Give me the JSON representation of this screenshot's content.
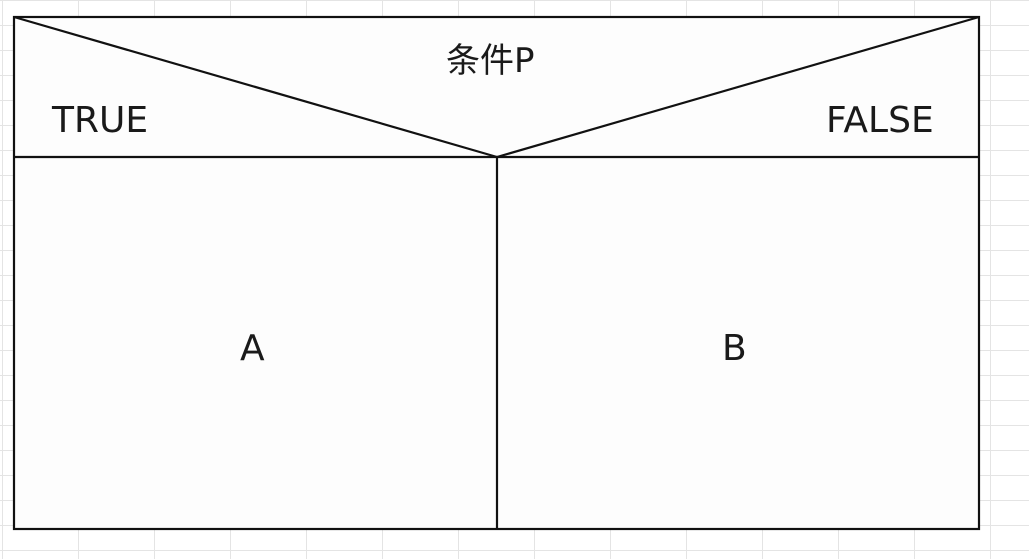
{
  "diagram": {
    "condition_label": "条件P",
    "true_label": "TRUE",
    "false_label": "FALSE",
    "true_branch_label": "A",
    "false_branch_label": "B"
  },
  "colors": {
    "line": "#111111",
    "box_fill": "#fdfdfd",
    "grid": "#e4e4e4",
    "text": "#1a1a1a"
  }
}
